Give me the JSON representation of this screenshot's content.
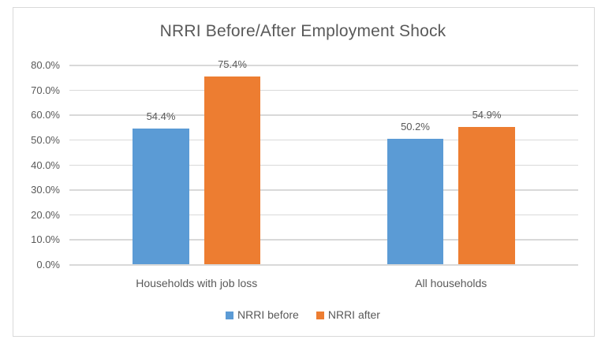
{
  "chart_data": {
    "type": "bar",
    "title": "NRRI Before/After Employment Shock",
    "categories": [
      "Households with job loss",
      "All households"
    ],
    "series": [
      {
        "name": "NRRI before",
        "color": "#5B9BD5",
        "values": [
          54.4,
          50.2
        ],
        "labels": [
          "54.4%",
          "50.2%"
        ]
      },
      {
        "name": "NRRI after",
        "color": "#ED7D31",
        "values": [
          75.4,
          54.9
        ],
        "labels": [
          "75.4%",
          "54.9%"
        ]
      }
    ],
    "ylim": [
      0,
      80
    ],
    "ytick_step": 10,
    "ytick_labels": [
      "0.0%",
      "10.0%",
      "20.0%",
      "30.0%",
      "40.0%",
      "50.0%",
      "60.0%",
      "70.0%",
      "80.0%"
    ],
    "grid": true,
    "legend_position": "bottom",
    "colors": {
      "axis_text": "#595959",
      "title_text": "#595959",
      "gridline": "#D9D9D9",
      "frame_border": "#D9D9D9",
      "background": "#FFFFFF"
    }
  }
}
